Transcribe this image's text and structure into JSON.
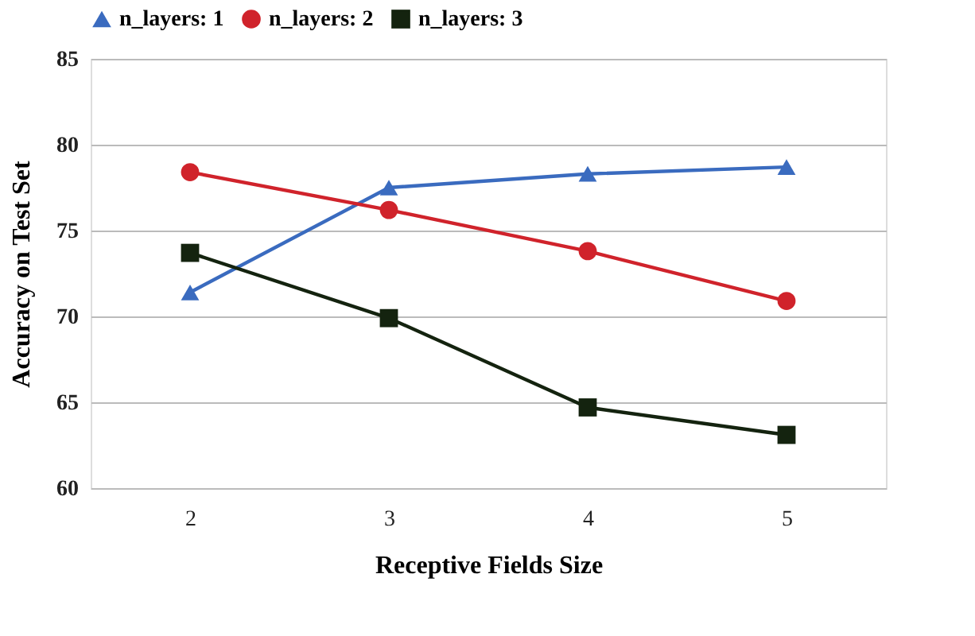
{
  "chart_data": {
    "type": "line",
    "xlabel": "Receptive Fields Size",
    "ylabel": "Accuracy on Test Set",
    "x": [
      2,
      3,
      4,
      5
    ],
    "xlim": [
      1.5,
      5.5
    ],
    "xticks": [
      2,
      3,
      4,
      5
    ],
    "ylim": [
      60,
      85
    ],
    "yticks": [
      60,
      65,
      70,
      75,
      80,
      85
    ],
    "grid": "y",
    "legend": "top",
    "series": [
      {
        "name": "n_layers: 1",
        "color": "#3a6bbf",
        "marker": "triangle",
        "values": [
          71.4,
          77.5,
          78.3,
          78.7
        ]
      },
      {
        "name": "n_layers: 2",
        "color": "#d0232b",
        "marker": "circle",
        "values": [
          78.4,
          76.2,
          73.8,
          70.9
        ]
      },
      {
        "name": "n_layers: 3",
        "color": "#14230f",
        "marker": "square",
        "values": [
          73.7,
          69.9,
          64.7,
          63.1
        ]
      }
    ]
  }
}
